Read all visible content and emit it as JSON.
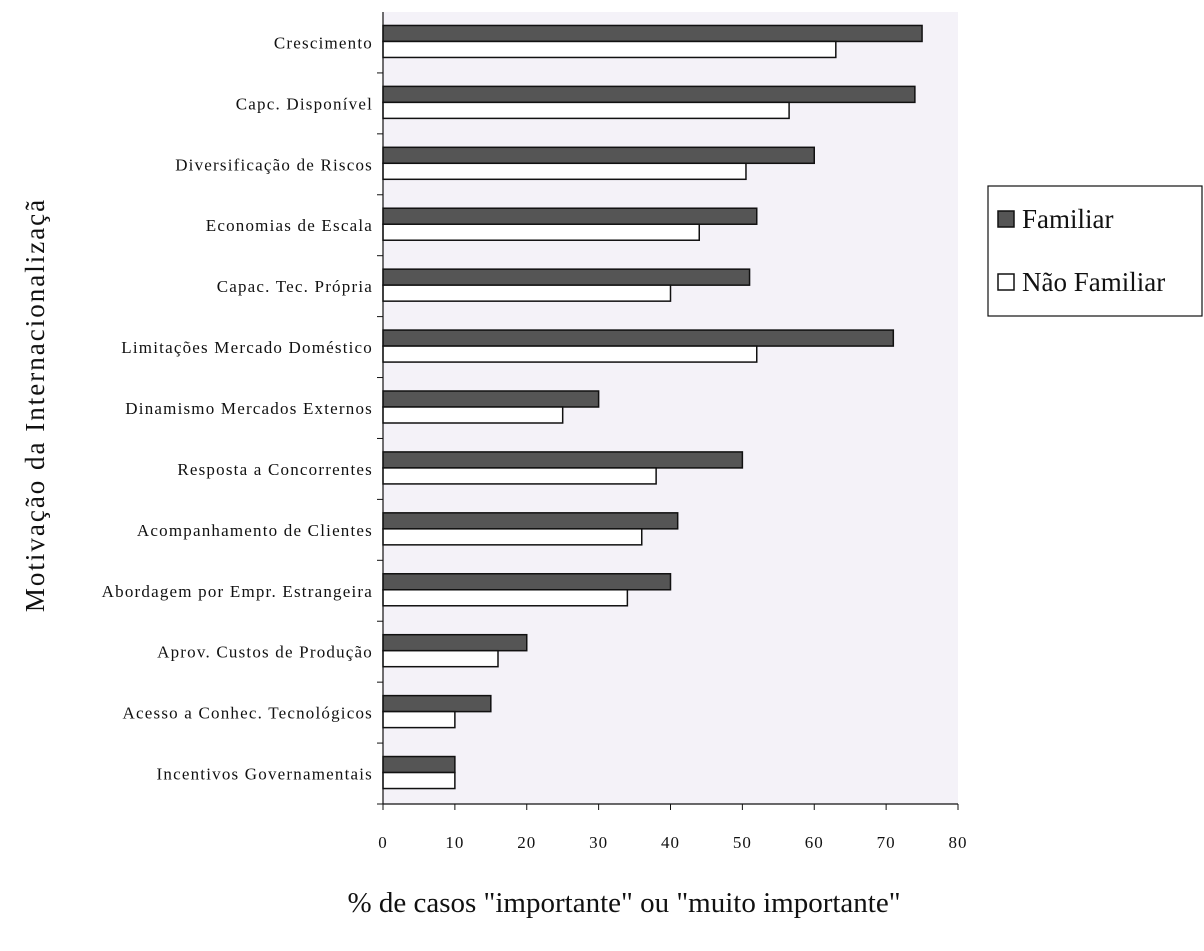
{
  "chart_data": {
    "type": "bar",
    "orientation": "horizontal",
    "title": "",
    "xlabel": "% de casos \"importante\" ou \"muito importante\"",
    "ylabel": "Motivação da Internacionalizaçã",
    "xlim": [
      0,
      80
    ],
    "xticks": [
      0,
      10,
      20,
      30,
      40,
      50,
      60,
      70,
      80
    ],
    "grid": false,
    "legend_position": "right",
    "categories": [
      "Crescimento",
      "Capc. Disponível",
      "Diversificação de Riscos",
      "Economias de Escala",
      "Capac. Tec. Própria",
      "Limitações Mercado Doméstico",
      "Dinamismo Mercados Externos",
      "Resposta a Concorrentes",
      "Acompanhamento de Clientes",
      "Abordagem por Empr. Estrangeira",
      "Aprov. Custos de Produção",
      "Acesso a Conhec. Tecnológicos",
      "Incentivos Governamentais"
    ],
    "series": [
      {
        "name": "Familiar",
        "color": "#555555",
        "values": [
          75,
          74,
          60,
          52,
          51,
          71,
          30,
          50,
          41,
          40,
          20,
          15,
          10
        ]
      },
      {
        "name": "Não Familiar",
        "color": "#ffffff",
        "values": [
          63,
          56.5,
          50.5,
          44,
          40,
          52,
          25,
          38,
          36,
          34,
          16,
          10,
          10
        ]
      }
    ],
    "colors": {
      "plot_background": "#f4f2f8",
      "bar_outline": "#111111"
    }
  }
}
